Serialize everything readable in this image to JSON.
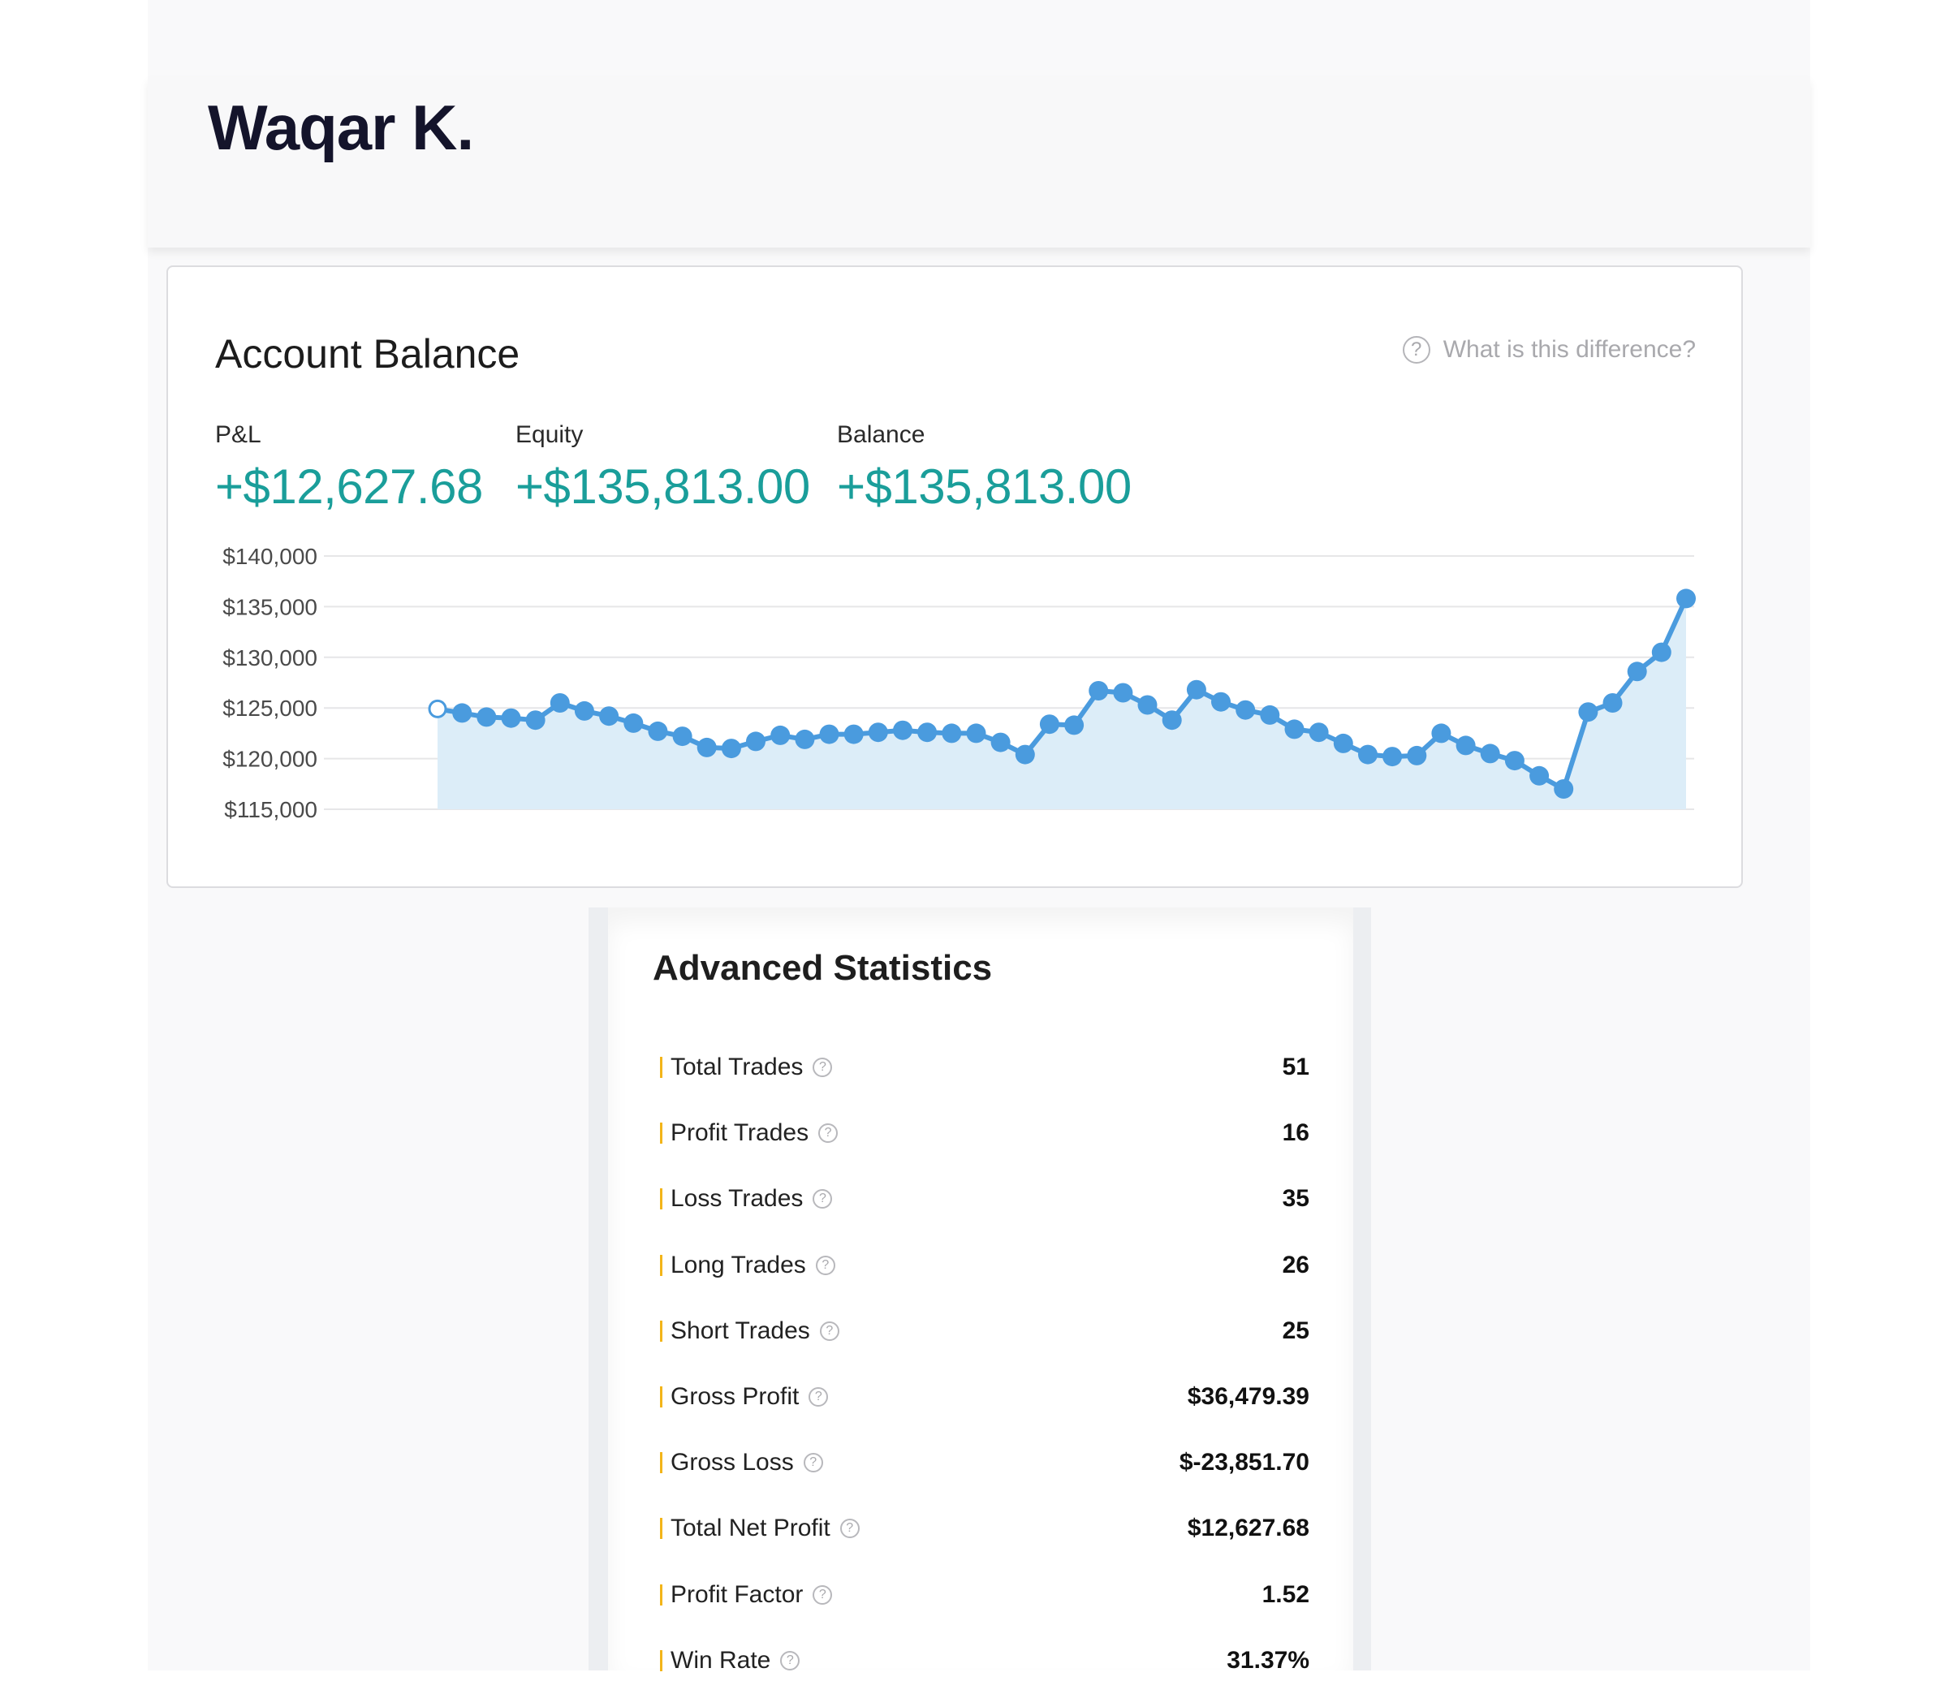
{
  "header": {
    "trader_name": "Waqar K."
  },
  "account_balance": {
    "title": "Account Balance",
    "help_text": "What is this difference?",
    "metrics": [
      {
        "label": "P&L",
        "value": "+$12,627.68"
      },
      {
        "label": "Equity",
        "value": "+$135,813.00"
      },
      {
        "label": "Balance",
        "value": "+$135,813.00"
      }
    ],
    "colors": {
      "accent": "#1a9e9a",
      "line": "#4a9bde",
      "fill": "#dcedf8"
    }
  },
  "chart_data": {
    "type": "area",
    "yticks": [
      "$140,000",
      "$135,000",
      "$130,000",
      "$125,000",
      "$120,000",
      "$115,000"
    ],
    "ylim": [
      115000,
      140000
    ],
    "values": [
      124900,
      124500,
      124100,
      124000,
      123800,
      125500,
      124700,
      124200,
      123500,
      122700,
      122200,
      121100,
      121000,
      121700,
      122300,
      121900,
      122400,
      122400,
      122600,
      122800,
      122600,
      122500,
      122500,
      121600,
      120400,
      123400,
      123300,
      126700,
      126500,
      125300,
      123800,
      126800,
      125600,
      124800,
      124300,
      122900,
      122600,
      121500,
      120400,
      120200,
      120300,
      122500,
      121300,
      120500,
      119800,
      118300,
      117000,
      124600,
      125500,
      128600,
      130500,
      135800
    ]
  },
  "advanced_statistics": {
    "title": "Advanced Statistics",
    "rows": [
      {
        "label": "Total Trades",
        "value": "51"
      },
      {
        "label": "Profit Trades",
        "value": "16"
      },
      {
        "label": "Loss Trades",
        "value": "35"
      },
      {
        "label": "Long Trades",
        "value": "26"
      },
      {
        "label": "Short Trades",
        "value": "25"
      },
      {
        "label": "Gross Profit",
        "value": "$36,479.39"
      },
      {
        "label": "Gross Loss",
        "value": "$-23,851.70"
      },
      {
        "label": "Total Net Profit",
        "value": "$12,627.68"
      },
      {
        "label": "Profit Factor",
        "value": "1.52"
      },
      {
        "label": "Win Rate",
        "value": "31.37%"
      }
    ]
  }
}
